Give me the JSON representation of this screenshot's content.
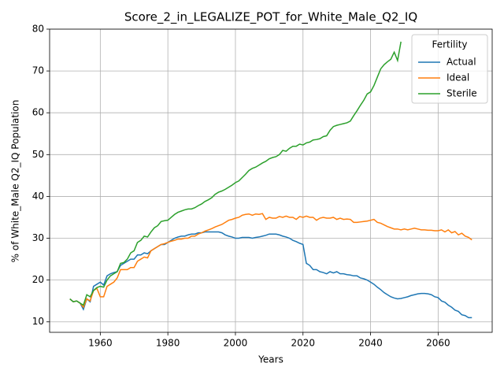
{
  "chart_data": {
    "type": "line",
    "title": "Score_2_in_LEGALIZE_POT_for_White_Male_Q2_IQ",
    "x_label": "Years",
    "y_label": "% of White_Male Q2_IQ Population",
    "legend_title": "Fertility",
    "legend_position": "upper right",
    "grid": true,
    "xlim": [
      1945,
      2076
    ],
    "ylim": [
      7.5,
      80
    ],
    "xticks": [
      1960,
      1980,
      2000,
      2020,
      2040,
      2060
    ],
    "yticks": [
      10,
      20,
      30,
      40,
      50,
      60,
      70,
      80
    ],
    "x": [
      1951,
      1952,
      1953,
      1954,
      1955,
      1956,
      1957,
      1958,
      1959,
      1960,
      1961,
      1962,
      1963,
      1964,
      1965,
      1966,
      1967,
      1968,
      1969,
      1970,
      1971,
      1972,
      1973,
      1974,
      1975,
      1976,
      1977,
      1978,
      1979,
      1980,
      1981,
      1982,
      1983,
      1984,
      1985,
      1986,
      1987,
      1988,
      1989,
      1990,
      1991,
      1992,
      1993,
      1994,
      1995,
      1996,
      1997,
      1998,
      1999,
      2000,
      2001,
      2002,
      2003,
      2004,
      2005,
      2006,
      2007,
      2008,
      2009,
      2010,
      2011,
      2012,
      2013,
      2014,
      2015,
      2016,
      2017,
      2018,
      2019,
      2020,
      2021,
      2022,
      2023,
      2024,
      2025,
      2026,
      2027,
      2028,
      2029,
      2030,
      2031,
      2032,
      2033,
      2034,
      2035,
      2036,
      2037,
      2038,
      2039,
      2040,
      2041,
      2042,
      2043,
      2044,
      2045,
      2046,
      2047,
      2048,
      2049,
      2050,
      2051,
      2052,
      2053,
      2054,
      2055,
      2056,
      2057,
      2058,
      2059,
      2060,
      2061,
      2062,
      2063,
      2064,
      2065,
      2066,
      2067,
      2068,
      2069,
      2070
    ],
    "series": [
      {
        "name": "Actual",
        "color": "#1f77b4",
        "values": [
          15.5,
          14.8,
          15.0,
          14.5,
          13.0,
          15.5,
          14.8,
          18.5,
          19.0,
          19.5,
          18.8,
          21.0,
          21.5,
          21.8,
          22.0,
          23.5,
          24.0,
          24.5,
          25.0,
          25.0,
          26.0,
          26.0,
          26.5,
          26.3,
          27.0,
          27.5,
          28.0,
          28.5,
          28.5,
          29.0,
          29.5,
          30.0,
          30.3,
          30.5,
          30.5,
          30.8,
          31.0,
          31.0,
          31.3,
          31.3,
          31.5,
          31.5,
          31.5,
          31.5,
          31.5,
          31.3,
          30.8,
          30.5,
          30.3,
          30.0,
          30.0,
          30.2,
          30.2,
          30.2,
          30.0,
          30.2,
          30.3,
          30.5,
          30.7,
          31.0,
          31.0,
          31.0,
          30.8,
          30.5,
          30.3,
          30.0,
          29.5,
          29.2,
          28.8,
          28.5,
          24.0,
          23.5,
          22.5,
          22.5,
          22.0,
          21.8,
          21.5,
          22.0,
          21.7,
          22.0,
          21.5,
          21.5,
          21.3,
          21.2,
          21.0,
          21.0,
          20.5,
          20.3,
          20.0,
          19.5,
          19.0,
          18.3,
          17.7,
          17.0,
          16.5,
          16.0,
          15.7,
          15.5,
          15.6,
          15.8,
          16.0,
          16.3,
          16.5,
          16.7,
          16.8,
          16.8,
          16.7,
          16.5,
          16.0,
          15.8,
          15.0,
          14.7,
          14.0,
          13.5,
          12.8,
          12.5,
          11.7,
          11.5,
          11.0,
          11.0
        ]
      },
      {
        "name": "Ideal",
        "color": "#ff7f0e",
        "values": [
          15.5,
          14.8,
          15.0,
          14.5,
          13.5,
          15.5,
          15.0,
          17.5,
          18.0,
          16.0,
          16.0,
          18.5,
          19.0,
          19.5,
          20.5,
          22.5,
          22.5,
          22.5,
          23.0,
          23.0,
          24.5,
          25.0,
          25.5,
          25.3,
          27.0,
          27.5,
          28.0,
          28.5,
          28.7,
          29.0,
          29.3,
          29.5,
          29.8,
          29.8,
          30.0,
          30.0,
          30.5,
          30.5,
          31.0,
          31.3,
          31.7,
          32.0,
          32.3,
          32.7,
          33.0,
          33.3,
          33.8,
          34.3,
          34.5,
          34.8,
          35.0,
          35.5,
          35.7,
          35.8,
          35.5,
          35.8,
          35.7,
          35.9,
          34.5,
          35.0,
          34.8,
          34.8,
          35.2,
          35.0,
          35.3,
          35.0,
          35.0,
          34.5,
          35.2,
          35.0,
          35.3,
          35.0,
          35.0,
          34.3,
          34.8,
          35.0,
          34.8,
          34.8,
          35.0,
          34.5,
          34.8,
          34.5,
          34.6,
          34.5,
          33.8,
          33.8,
          33.9,
          34.0,
          34.1,
          34.3,
          34.5,
          33.8,
          33.6,
          33.2,
          32.8,
          32.5,
          32.2,
          32.2,
          32.0,
          32.2,
          32.0,
          32.2,
          32.4,
          32.2,
          32.0,
          32.0,
          31.9,
          31.9,
          31.8,
          31.8,
          32.0,
          31.5,
          32.0,
          31.3,
          31.6,
          30.8,
          31.2,
          30.5,
          30.2,
          29.6
        ]
      },
      {
        "name": "Sterile",
        "color": "#2ca02c",
        "values": [
          15.5,
          14.8,
          15.0,
          14.5,
          14.0,
          16.5,
          16.0,
          17.5,
          18.2,
          18.5,
          18.3,
          20.0,
          21.0,
          21.5,
          22.0,
          24.0,
          24.2,
          25.0,
          26.5,
          27.0,
          29.0,
          29.5,
          30.5,
          30.3,
          31.5,
          32.5,
          33.0,
          34.0,
          34.2,
          34.3,
          35.0,
          35.7,
          36.2,
          36.5,
          36.8,
          37.0,
          37.0,
          37.3,
          37.8,
          38.2,
          38.8,
          39.2,
          39.7,
          40.5,
          41.0,
          41.3,
          41.7,
          42.2,
          42.7,
          43.3,
          43.7,
          44.5,
          45.3,
          46.2,
          46.7,
          47.0,
          47.5,
          48.0,
          48.4,
          49.0,
          49.3,
          49.5,
          50.0,
          51.0,
          50.8,
          51.5,
          52.0,
          52.0,
          52.5,
          52.3,
          52.8,
          53.0,
          53.5,
          53.6,
          53.8,
          54.3,
          54.5,
          55.8,
          56.7,
          57.0,
          57.2,
          57.4,
          57.6,
          58.0,
          59.3,
          60.5,
          61.8,
          63.0,
          64.5,
          65.0,
          66.5,
          68.5,
          70.5,
          71.5,
          72.2,
          72.8,
          74.5,
          72.5,
          77.0,
          null,
          null,
          null,
          null,
          null,
          null,
          null,
          null,
          null,
          null,
          null,
          null,
          null,
          null,
          null,
          null,
          null,
          null,
          null,
          null,
          null
        ]
      }
    ]
  }
}
